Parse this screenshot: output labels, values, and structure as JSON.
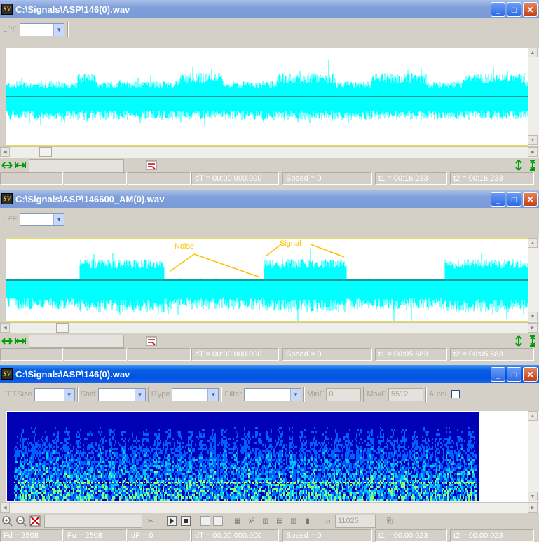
{
  "windows": [
    {
      "title": "C:\\Signals\\ASP\\146(0).wav",
      "filter_label": "LPF",
      "status": {
        "dT": "dT = 00:00.000.000",
        "speed": "Speed = 0",
        "t1": "t1 = 00:16.233",
        "t2": "t2 = 00:16.233"
      }
    },
    {
      "title": "C:\\Signals\\ASP\\146600_AM(0).wav",
      "filter_label": "LPF",
      "annotations": {
        "noise": "Noise",
        "signal": "Signal"
      },
      "status": {
        "dT": "dT = 00:00.000.000",
        "speed": "Speed = 0",
        "t1": "t1 = 00:05.683",
        "t2": "t2 = 00:05.683"
      }
    },
    {
      "title": "C:\\Signals\\ASP\\146(0).wav",
      "toolbar": {
        "fftsize_label": "FFTSize",
        "shift_label": "Shift",
        "itype_label": "IType",
        "filter_label": "Filter",
        "minf_label": "MinF",
        "minf_value": "0",
        "maxf_label": "MaxF",
        "maxf_value": "5512",
        "autol_label": "AutoL"
      },
      "sample_rate_value": "11025",
      "status": {
        "fd": "Fd = 2508",
        "fu": "Fu = 2508",
        "dF": "dF = 0",
        "dT": "dT = 00:00.000.000",
        "speed": "Speed = 0",
        "t1": "t1 = 00:00.023",
        "t2": "t2 = 00:00.023"
      }
    }
  ],
  "colors": {
    "waveform": "#00ffff",
    "annotation": "#ffc000",
    "spectrogram_bg": "#0000b4",
    "titlebar_active": "#0054e3",
    "titlebar_inactive": "#7a9ad8",
    "window_face": "#d4d0c8"
  },
  "icons": [
    "app-icon",
    "minimize-icon",
    "maximize-icon",
    "close-icon",
    "arrow-horizontal-icon",
    "zoom-in-icon",
    "zoom-out-icon",
    "play-icon",
    "stop-icon",
    "marker-icon"
  ]
}
